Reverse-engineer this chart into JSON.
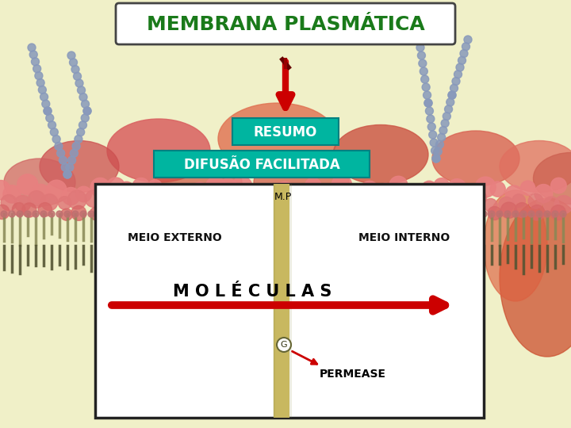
{
  "bg_color": "#f0f0c8",
  "title": "MEMBRANA PLASMÁTICA",
  "title_color": "#1a7a1a",
  "title_bg": "#ffffff",
  "title_border": "#444444",
  "resumo_text": "RESUMO",
  "resumo_bg": "#00b5a0",
  "resumo_text_color": "#ffffff",
  "difusao_text": "DIFUSÃO FACILITADA",
  "difusao_bg": "#00b5a0",
  "difusao_text_color": "#ffffff",
  "box_bg": "#ffffff",
  "box_border": "#222222",
  "mp_label": "M.P",
  "meio_externo": "MEIO EXTERNO",
  "meio_interno": "MEIO INTERNO",
  "moleculas": "M O L É C U L A S",
  "permease": "PERMEASE",
  "membrane_color": "#c8b860",
  "arrow_down_color": "#cc0000",
  "arrow_right_color": "#cc0000",
  "arrow_permease_color": "#cc0000",
  "lipid_head_color": "#e88080",
  "lipid_tail_color": "#888855",
  "blob_color1": "#e07070",
  "blob_color2": "#cc5555",
  "blob_dark": "#b84040",
  "bead_color": "#8899bb"
}
